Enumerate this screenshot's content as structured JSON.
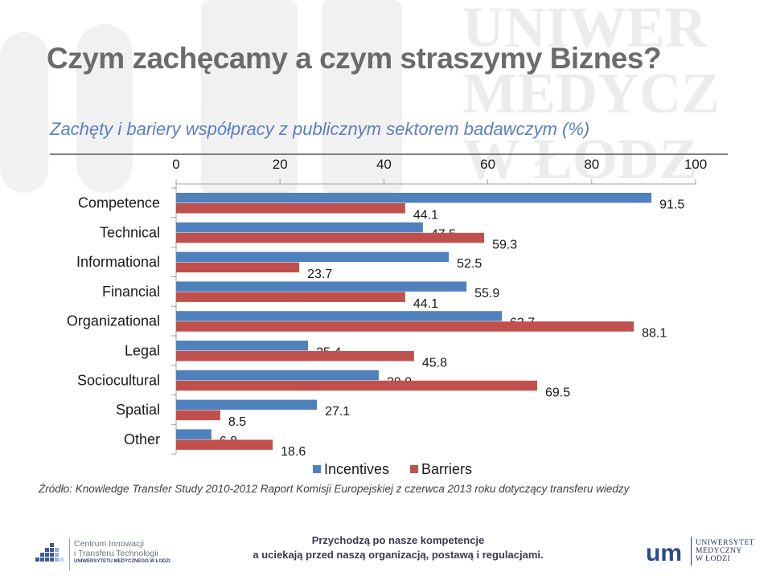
{
  "slide": {
    "title": "Czym zachęcamy a czym straszymy Biznes?",
    "subtitle": "Zachęty i bariery współpracy z publicznym sektorem badawczym (%)",
    "source": "Źródło: Knowledge Transfer Study 2010-2012 Raport Komisji Europejskiej z  czerwca 2013 roku dotyczący transferu  wiedzy"
  },
  "chart_data": {
    "type": "bar",
    "orientation": "horizontal",
    "categories": [
      "Competence",
      "Technical",
      "Informational",
      "Financial",
      "Organizational",
      "Legal",
      "Sociocultural",
      "Spatial",
      "Other"
    ],
    "series": [
      {
        "name": "Incentives",
        "color": "#4f81bd",
        "values": [
          91.5,
          47.5,
          52.5,
          55.9,
          62.7,
          25.4,
          39.0,
          27.1,
          6.8
        ],
        "labels": [
          "91.5",
          "47.5",
          "52.5",
          "55.9",
          "62.7",
          "25.4",
          "39.0",
          "27.1",
          "6.8"
        ]
      },
      {
        "name": "Barriers",
        "color": "#c0504d",
        "values": [
          44.1,
          59.3,
          23.7,
          44.1,
          88.1,
          45.8,
          69.5,
          8.5,
          18.6
        ],
        "labels": [
          "44.1",
          "59.3",
          "23.7",
          "44.1",
          "88.1",
          "45.8",
          "69.5",
          "8.5",
          "18.6"
        ]
      }
    ],
    "x_ticks": [
      "0",
      "20",
      "40",
      "60",
      "80",
      "100"
    ],
    "xlim": [
      0,
      100
    ],
    "axis_position": "top",
    "legend_position": "bottom",
    "grid": false
  },
  "footer": {
    "left_logo_line1": "Centrum Innowacji",
    "left_logo_line2": "i Transferu Technologii",
    "left_logo_line3": "UNIWERSYTETU MEDYCZNEGO W ŁODZI",
    "tagline_line1": "Przychodzą po nasze kompetencje",
    "tagline_line2": "a uciekają przed naszą organizacją, postawą i regulacjami.",
    "right_logo_mark": "um",
    "right_logo_line1": "UNIWERSYTET",
    "right_logo_line2": "MEDYCZNY",
    "right_logo_line3": "W ŁODZI"
  },
  "watermark": {
    "line1": "UNIWER",
    "line2": "MEDYCZ",
    "line3": "W ŁODZ"
  }
}
